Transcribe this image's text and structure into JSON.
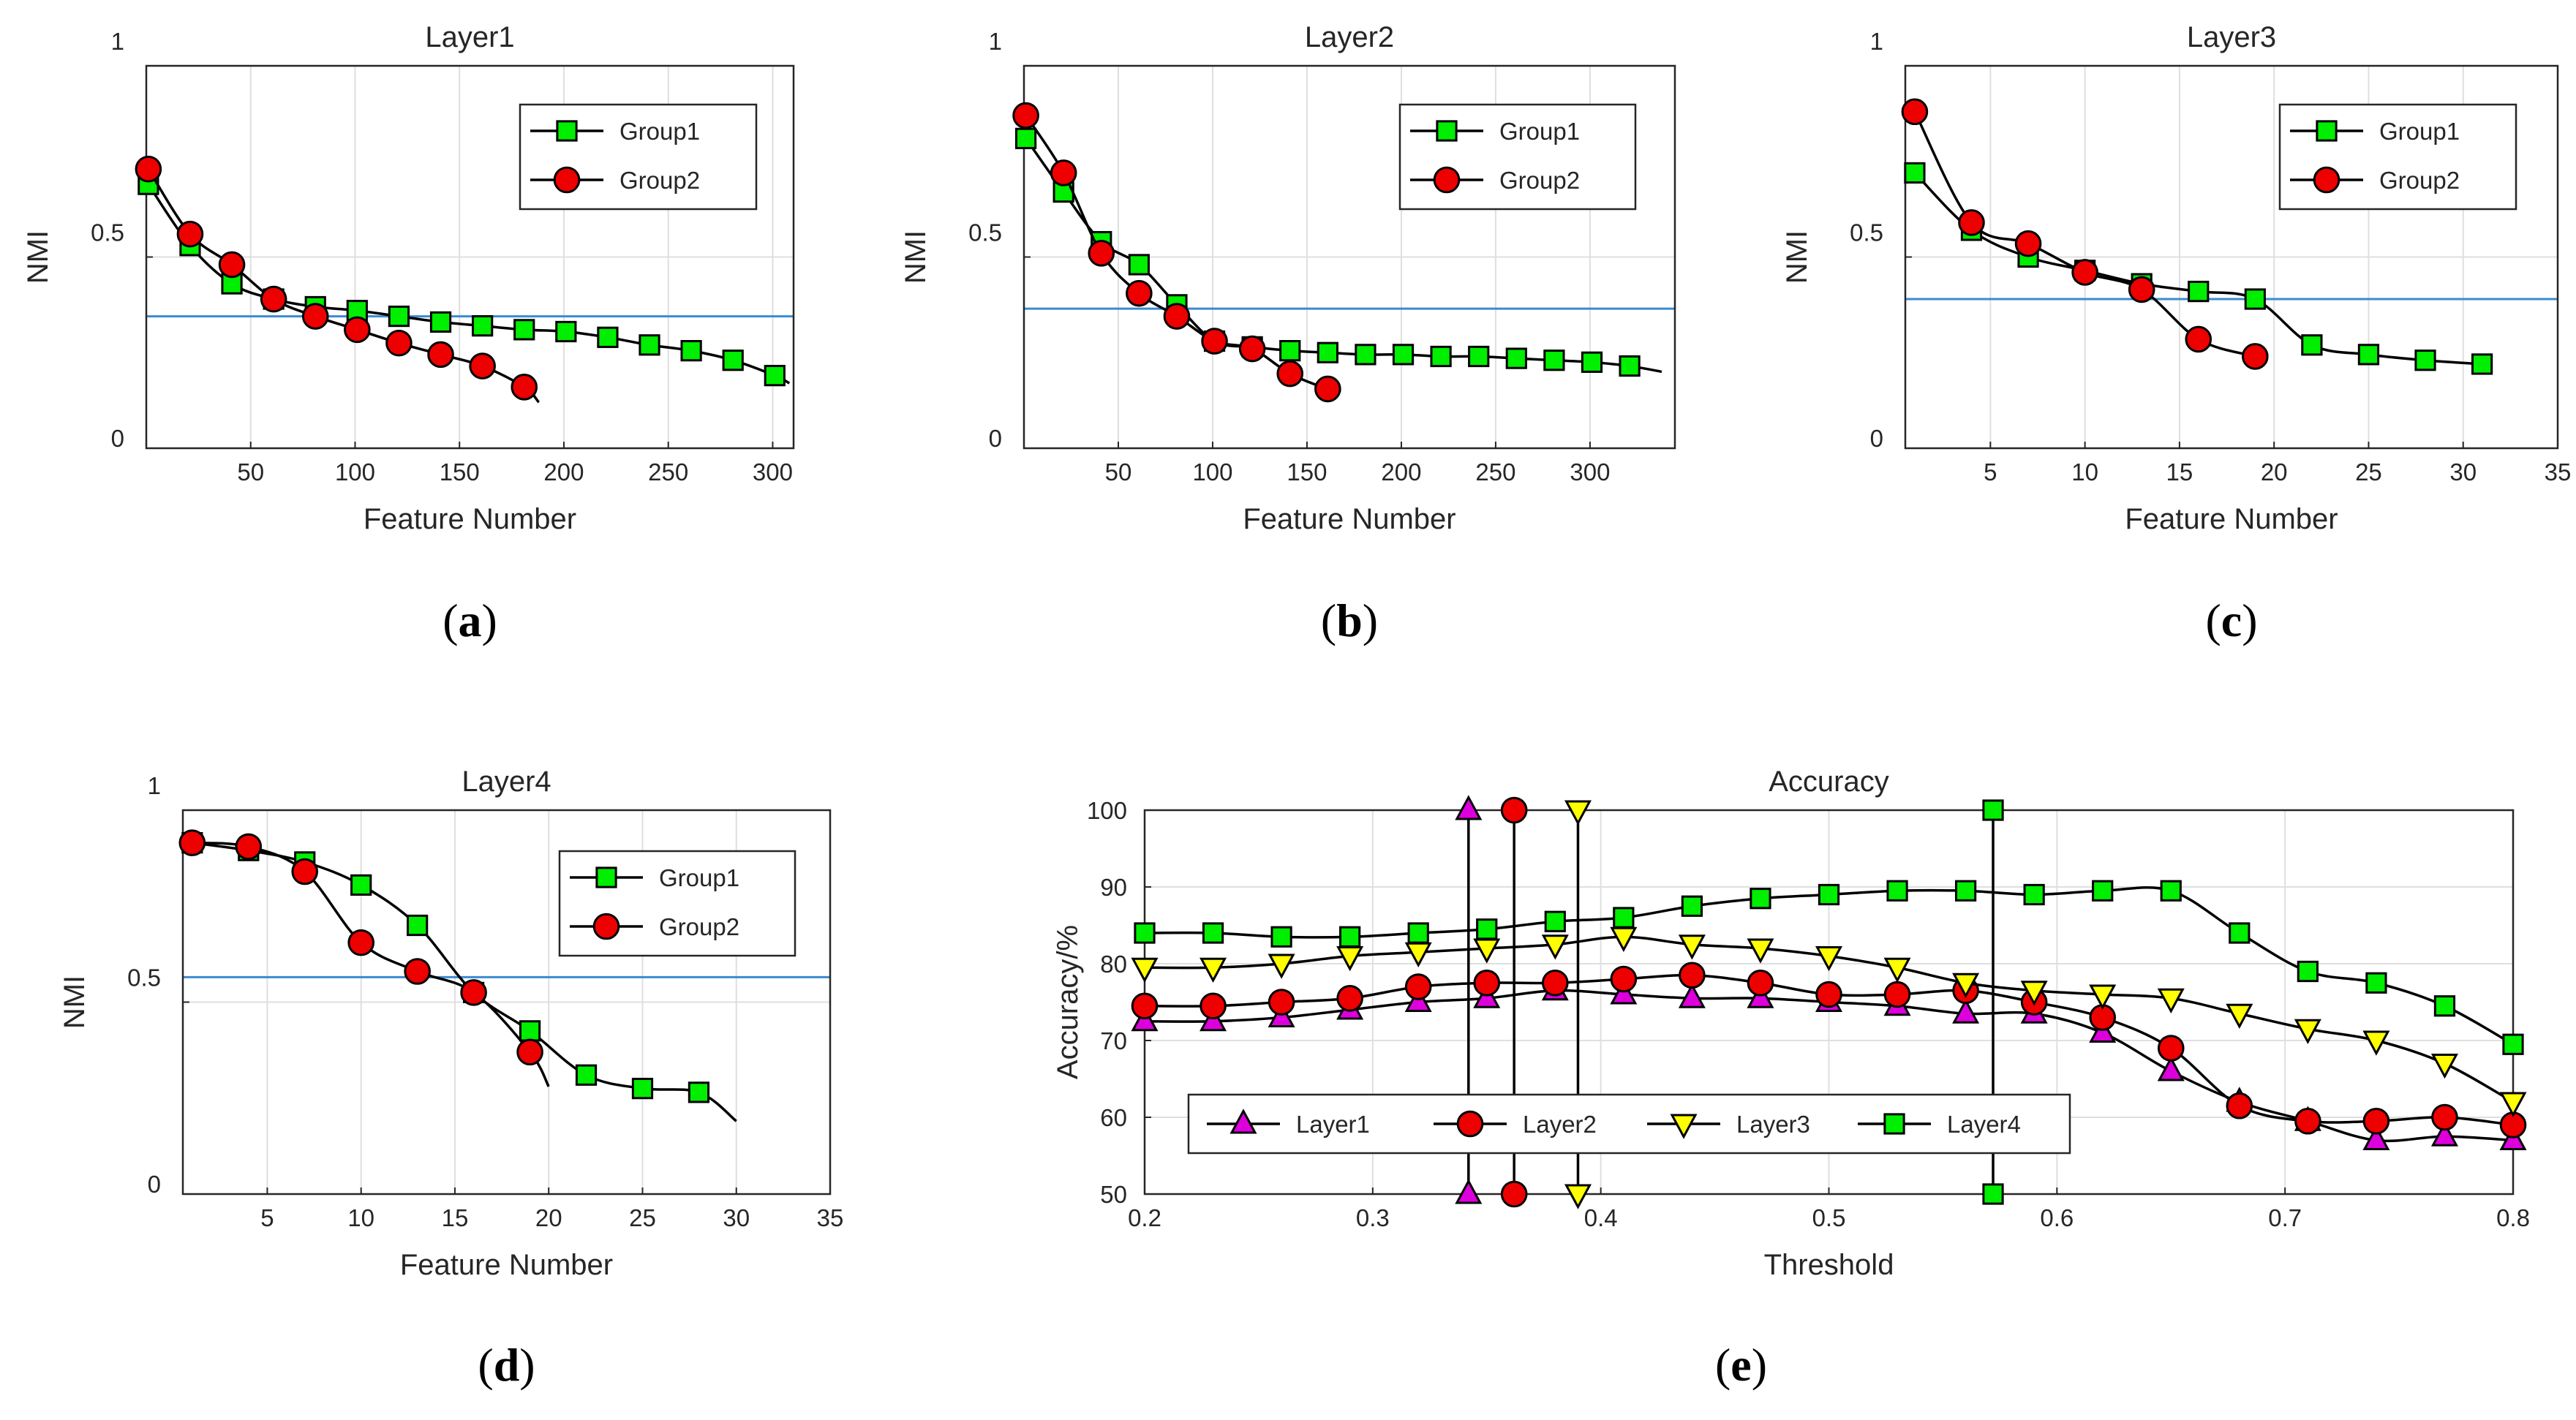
{
  "chart_data": [
    {
      "id": "a",
      "type": "line",
      "title": "Layer1",
      "xlabel": "Feature Number",
      "ylabel": "NMI",
      "caption_letter": "a",
      "xlim": [
        0,
        310
      ],
      "ylim": [
        0,
        1
      ],
      "xticks": [
        50,
        100,
        150,
        200,
        250,
        300
      ],
      "yticks": [
        0,
        0.5,
        1
      ],
      "ytick_labels": [
        "0",
        "0.5",
        "1"
      ],
      "grid": true,
      "legend_position": "top-right",
      "threshold": 0.345,
      "series": [
        {
          "name": "Group1",
          "marker": "square",
          "color": "#00ee00",
          "x": [
            1,
            21,
            41,
            61,
            81,
            101,
            121,
            141,
            161,
            181,
            201,
            221,
            241,
            261,
            281,
            301
          ],
          "y": [
            0.69,
            0.53,
            0.43,
            0.39,
            0.37,
            0.36,
            0.345,
            0.33,
            0.32,
            0.31,
            0.305,
            0.29,
            0.27,
            0.255,
            0.23,
            0.19
          ],
          "line_end": [
            308,
            0.17
          ]
        },
        {
          "name": "Group2",
          "marker": "circle",
          "color": "#ee0000",
          "x": [
            1,
            21,
            41,
            61,
            81,
            101,
            121,
            141,
            161,
            181
          ],
          "y": [
            0.73,
            0.56,
            0.48,
            0.39,
            0.345,
            0.31,
            0.275,
            0.245,
            0.215,
            0.16
          ],
          "line_end": [
            188,
            0.12
          ]
        }
      ]
    },
    {
      "id": "b",
      "type": "line",
      "title": "Layer2",
      "xlabel": "Feature Number",
      "ylabel": "NMI",
      "caption_letter": "b",
      "xlim": [
        0,
        345
      ],
      "ylim": [
        0,
        1
      ],
      "xticks": [
        50,
        100,
        150,
        200,
        250,
        300
      ],
      "yticks": [
        0,
        0.5,
        1
      ],
      "ytick_labels": [
        "0",
        "0.5",
        "1"
      ],
      "grid": true,
      "legend_position": "top-right",
      "threshold": 0.365,
      "series": [
        {
          "name": "Group1",
          "marker": "square",
          "color": "#00ee00",
          "x": [
            1,
            21,
            41,
            61,
            81,
            101,
            121,
            141,
            161,
            181,
            201,
            221,
            241,
            261,
            281,
            301,
            321
          ],
          "y": [
            0.81,
            0.67,
            0.54,
            0.48,
            0.375,
            0.28,
            0.265,
            0.255,
            0.25,
            0.245,
            0.245,
            0.24,
            0.24,
            0.235,
            0.23,
            0.225,
            0.215
          ],
          "line_end": [
            338,
            0.2
          ]
        },
        {
          "name": "Group2",
          "marker": "circle",
          "color": "#ee0000",
          "x": [
            1,
            21,
            41,
            61,
            81,
            101,
            121,
            141,
            161
          ],
          "y": [
            0.87,
            0.72,
            0.51,
            0.405,
            0.345,
            0.28,
            0.26,
            0.195,
            0.155
          ],
          "line_end": [
            168,
            0.15
          ]
        }
      ]
    },
    {
      "id": "c",
      "type": "line",
      "title": "Layer3",
      "xlabel": "Feature Number",
      "ylabel": "NMI",
      "caption_letter": "c",
      "xlim": [
        0.5,
        35
      ],
      "ylim": [
        0,
        1
      ],
      "xticks": [
        5,
        10,
        15,
        20,
        25,
        30,
        35
      ],
      "yticks": [
        0,
        0.5,
        1
      ],
      "ytick_labels": [
        "0",
        "0.5",
        "1"
      ],
      "grid": true,
      "legend_position": "top-right",
      "threshold": 0.39,
      "series": [
        {
          "name": "Group1",
          "marker": "square",
          "color": "#00ee00",
          "x": [
            1,
            4,
            7,
            10,
            13,
            16,
            19,
            22,
            25,
            28,
            31
          ],
          "y": [
            0.72,
            0.57,
            0.5,
            0.465,
            0.43,
            0.41,
            0.39,
            0.27,
            0.245,
            0.23,
            0.22
          ]
        },
        {
          "name": "Group2",
          "marker": "circle",
          "color": "#ee0000",
          "x": [
            1,
            4,
            7,
            10,
            13,
            16,
            19
          ],
          "y": [
            0.88,
            0.59,
            0.535,
            0.46,
            0.415,
            0.285,
            0.24
          ]
        }
      ]
    },
    {
      "id": "d",
      "type": "line",
      "title": "Layer4",
      "xlabel": "Feature Number",
      "ylabel": "NMI",
      "caption_letter": "d",
      "xlim": [
        0.5,
        35
      ],
      "ylim": [
        0,
        1
      ],
      "xticks": [
        5,
        10,
        15,
        20,
        25,
        30,
        35
      ],
      "yticks": [
        0,
        0.5,
        1
      ],
      "ytick_labels": [
        "0",
        "0.5",
        "1"
      ],
      "grid": true,
      "legend_position": "top-right",
      "threshold": 0.565,
      "series": [
        {
          "name": "Group1",
          "marker": "square",
          "color": "#00ee00",
          "x": [
            1,
            4,
            7,
            10,
            13,
            16,
            19,
            22,
            25,
            28
          ],
          "y": [
            0.915,
            0.895,
            0.865,
            0.805,
            0.7,
            0.525,
            0.425,
            0.31,
            0.275,
            0.265
          ],
          "line_end": [
            30,
            0.19
          ]
        },
        {
          "name": "Group2",
          "marker": "circle",
          "color": "#ee0000",
          "x": [
            1,
            4,
            7,
            10,
            13,
            16,
            19
          ],
          "y": [
            0.915,
            0.905,
            0.84,
            0.655,
            0.58,
            0.525,
            0.37
          ],
          "line_end": [
            20,
            0.28
          ]
        }
      ]
    },
    {
      "id": "e",
      "type": "line",
      "title": "Accuracy",
      "xlabel": "Threshold",
      "ylabel": "Accuracy/%",
      "caption_letter": "e",
      "xlim": [
        0.2,
        0.8
      ],
      "ylim": [
        50,
        100
      ],
      "xticks": [
        0.2,
        0.3,
        0.4,
        0.5,
        0.6,
        0.7,
        0.8
      ],
      "xtick_labels": [
        "0.2",
        "0.3",
        "0.4",
        "0.5",
        "0.6",
        "0.7",
        "0.8"
      ],
      "yticks": [
        50,
        60,
        70,
        80,
        90,
        100
      ],
      "grid": true,
      "legend_position": "bottom-left",
      "x": [
        0.2,
        0.23,
        0.26,
        0.29,
        0.32,
        0.35,
        0.38,
        0.41,
        0.44,
        0.47,
        0.5,
        0.53,
        0.56,
        0.59,
        0.62,
        0.65,
        0.68,
        0.71,
        0.74,
        0.77,
        0.8
      ],
      "series": [
        {
          "name": "Layer1",
          "marker": "triangle-up",
          "color": "#dd00dd",
          "y": [
            72.5,
            72.5,
            73,
            74,
            75,
            75.5,
            76.5,
            76,
            75.5,
            75.5,
            75,
            74.5,
            73.5,
            73.5,
            71,
            66,
            62,
            59.5,
            57,
            57.5,
            57
          ],
          "vline_x": 0.342
        },
        {
          "name": "Layer2",
          "marker": "circle",
          "color": "#ee0000",
          "y": [
            74.5,
            74.5,
            75,
            75.5,
            77,
            77.5,
            77.5,
            78,
            78.5,
            77.5,
            76,
            76,
            76.5,
            75,
            73,
            69,
            61.5,
            59.5,
            59.5,
            60,
            59
          ],
          "vline_x": 0.362
        },
        {
          "name": "Layer3",
          "marker": "triangle-down",
          "color": "#ffff00",
          "y": [
            79.5,
            79.5,
            80,
            81,
            81.5,
            82,
            82.5,
            83.5,
            82.5,
            82,
            81,
            79.5,
            77.5,
            76.5,
            76,
            75.5,
            73.5,
            71.5,
            70,
            67,
            62
          ],
          "vline_x": 0.39
        },
        {
          "name": "Layer4",
          "marker": "square",
          "color": "#00ee00",
          "y": [
            84,
            84,
            83.5,
            83.5,
            84,
            84.5,
            85.5,
            86,
            87.5,
            88.5,
            89,
            89.5,
            89.5,
            89,
            89.5,
            89.5,
            84,
            79,
            77.5,
            74.5,
            69.5
          ],
          "vline_x": 0.572
        }
      ]
    }
  ]
}
